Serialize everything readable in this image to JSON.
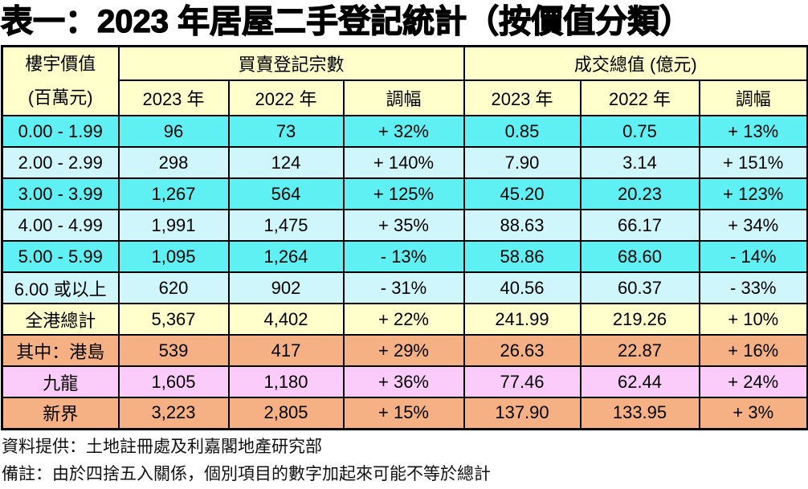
{
  "title": "表一：2023 年居屋二手登記統計（按價值分類）",
  "colors": {
    "cyan": "#5FF0F4",
    "cyanLight": "#CFF7FB",
    "yellow": "#FFFFCC",
    "orange": "#F5B183",
    "pink": "#FBCCF9",
    "headerYellow": "#FFFFCC",
    "border": "#000000"
  },
  "table": {
    "header": {
      "property_line1": "樓宇價值",
      "property_line2": "(百萬元)",
      "group_registrations": "買賣登記宗數",
      "group_total_value": "成交總值 (億元)",
      "sub_columns": [
        "2023 年",
        "2022 年",
        "調幅",
        "2023 年",
        "2022 年",
        "調幅"
      ]
    },
    "rows": [
      {
        "label": "0.00 - 1.99",
        "values": [
          "96",
          "73",
          "+ 32%",
          "0.85",
          "0.75",
          "+ 13%"
        ],
        "bg": "cyan"
      },
      {
        "label": "2.00 - 2.99",
        "values": [
          "298",
          "124",
          "+ 140%",
          "7.90",
          "3.14",
          "+ 151%"
        ],
        "bg": "cyanLight"
      },
      {
        "label": "3.00 - 3.99",
        "values": [
          "1,267",
          "564",
          "+ 125%",
          "45.20",
          "20.23",
          "+ 123%"
        ],
        "bg": "cyan"
      },
      {
        "label": "4.00 - 4.99",
        "values": [
          "1,991",
          "1,475",
          "+ 35%",
          "88.63",
          "66.17",
          "+ 34%"
        ],
        "bg": "cyanLight"
      },
      {
        "label": "5.00 - 5.99",
        "values": [
          "1,095",
          "1,264",
          "- 13%",
          "58.86",
          "68.60",
          "- 14%"
        ],
        "bg": "cyan"
      },
      {
        "label": "6.00 或以上",
        "values": [
          "620",
          "902",
          "- 31%",
          "40.56",
          "60.37",
          "- 33%"
        ],
        "bg": "cyanLight"
      },
      {
        "label": "全港總計",
        "values": [
          "5,367",
          "4,402",
          "+ 22%",
          "241.99",
          "219.26",
          "+ 10%"
        ],
        "bg": "yellow"
      },
      {
        "label": "其中：港島",
        "values": [
          "539",
          "417",
          "+ 29%",
          "26.63",
          "22.87",
          "+ 16%"
        ],
        "bg": "orange"
      },
      {
        "label": "九龍",
        "values": [
          "1,605",
          "1,180",
          "+ 36%",
          "77.46",
          "62.44",
          "+ 24%"
        ],
        "bg": "pink"
      },
      {
        "label": "新界",
        "values": [
          "3,223",
          "2,805",
          "+ 15%",
          "137.90",
          "133.95",
          "+ 3%"
        ],
        "bg": "orange"
      }
    ]
  },
  "footnotes": {
    "source": "資料提供：土地註冊處及利嘉閣地產研究部",
    "note": "備註：由於四捨五入關係，個別項目的數字加起來可能不等於總計"
  }
}
